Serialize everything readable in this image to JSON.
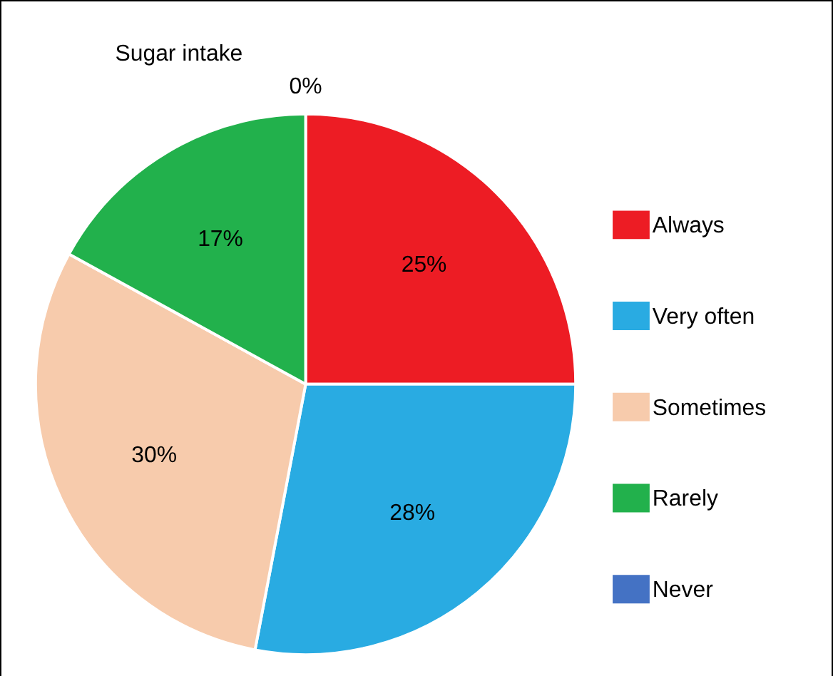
{
  "chart_data": {
    "type": "pie",
    "title": "Sugar intake",
    "categories": [
      "Always",
      "Very often",
      "Sometimes",
      "Rarely",
      "Never"
    ],
    "values": [
      25,
      28,
      30,
      17,
      0
    ],
    "colors": [
      "#ed1c24",
      "#29abe2",
      "#f7cbac",
      "#22b14c",
      "#4472c4"
    ],
    "value_labels": [
      "25%",
      "28%",
      "30%",
      "17%",
      "0%"
    ],
    "legend": "right"
  }
}
